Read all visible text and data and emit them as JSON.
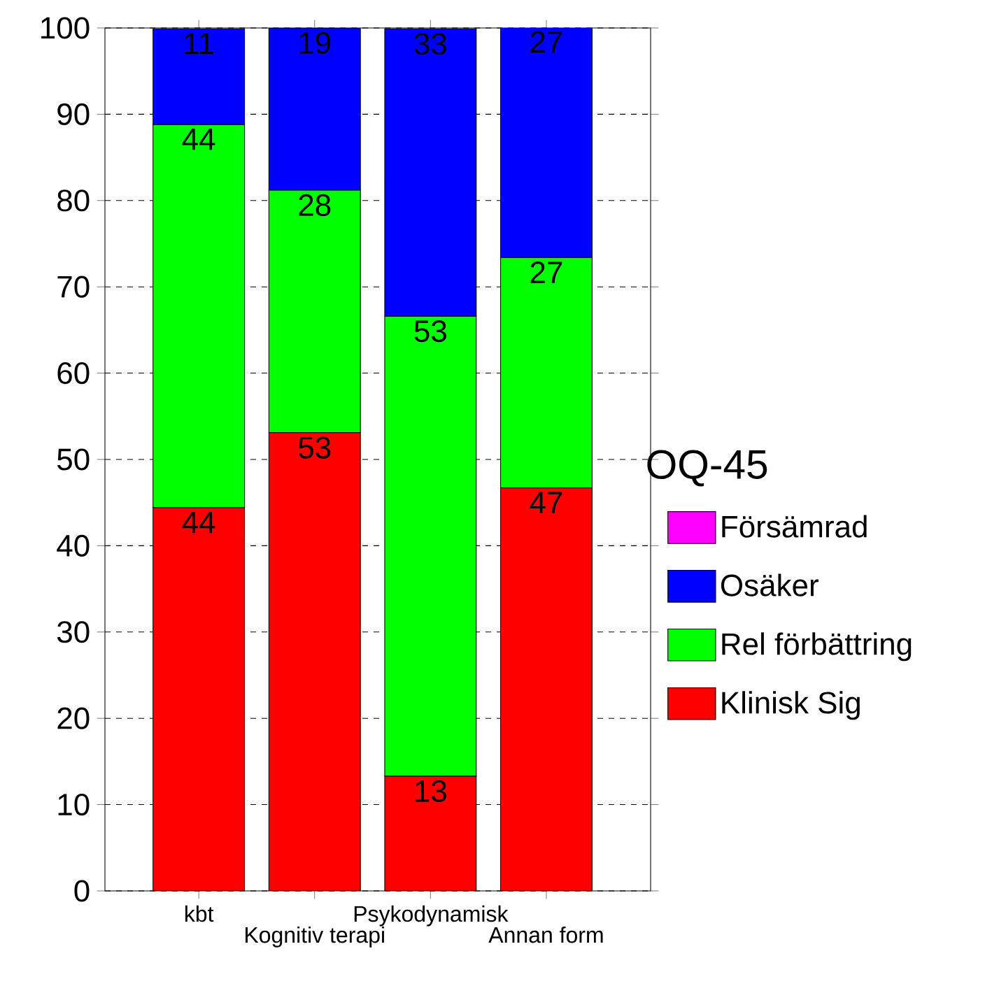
{
  "chart_data": {
    "type": "bar",
    "stacked": true,
    "categories": [
      "kbt",
      "Kognitiv terapi",
      "Psykodynamisk",
      "Annan form"
    ],
    "legend_title": "OQ-45",
    "legend": "right",
    "grid": "y",
    "ylim": [
      0,
      100
    ],
    "yticks": [
      0,
      10,
      20,
      30,
      40,
      50,
      60,
      70,
      80,
      90,
      100
    ],
    "series": [
      {
        "name": "Klinisk Sig",
        "color": "#ff0000",
        "values": [
          44.4,
          53.1,
          13.3,
          46.7
        ],
        "value_labels": [
          "44",
          "53",
          "13",
          "47"
        ]
      },
      {
        "name": "Rel förbättring",
        "color": "#00ff00",
        "values": [
          44.4,
          28.1,
          53.3,
          26.7
        ],
        "value_labels": [
          "44",
          "28",
          "53",
          "27"
        ]
      },
      {
        "name": "Osäker",
        "color": "#0000ff",
        "values": [
          11.1,
          18.8,
          33.3,
          26.7
        ],
        "value_labels": [
          "11",
          "19",
          "33",
          "27"
        ]
      },
      {
        "name": "Försämrad",
        "color": "#ff00ff",
        "values": [
          null,
          null,
          null,
          null
        ]
      }
    ]
  }
}
